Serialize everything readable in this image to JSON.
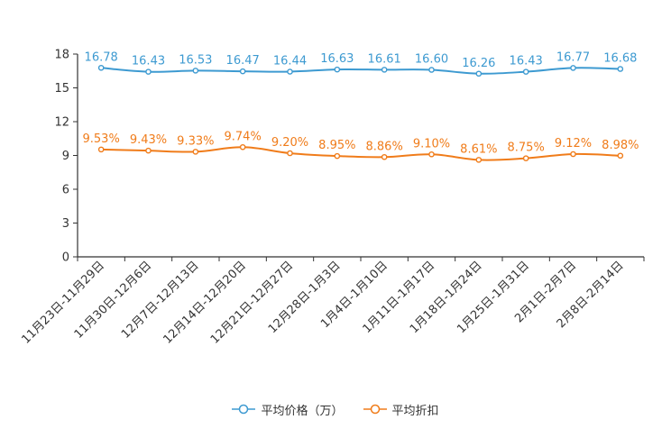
{
  "chart_data": {
    "type": "line",
    "categories": [
      "11月23日-11月29日",
      "11月30日-12月6日",
      "12月7日-12月13日",
      "12月14日-12月20日",
      "12月21日-12月27日",
      "12月28日-1月3日",
      "1月4日-1月10日",
      "1月11日-1月17日",
      "1月18日-1月24日",
      "1月25日-1月31日",
      "2月1日-2月7日",
      "2月8日-2月14日"
    ],
    "series": [
      {
        "name": "平均价格（万）",
        "color": "#3d9ad1",
        "values": [
          16.78,
          16.43,
          16.53,
          16.47,
          16.44,
          16.63,
          16.61,
          16.6,
          16.26,
          16.43,
          16.77,
          16.68
        ],
        "labels": [
          "16.78",
          "16.43",
          "16.53",
          "16.47",
          "16.44",
          "16.63",
          "16.61",
          "16.60",
          "16.26",
          "16.43",
          "16.77",
          "16.68"
        ]
      },
      {
        "name": "平均折扣",
        "color": "#f07c1a",
        "values": [
          9.53,
          9.43,
          9.33,
          9.74,
          9.2,
          8.95,
          8.86,
          9.1,
          8.61,
          8.75,
          9.12,
          8.98
        ],
        "labels": [
          "9.53%",
          "9.43%",
          "9.33%",
          "9.74%",
          "9.20%",
          "8.95%",
          "8.86%",
          "9.10%",
          "8.61%",
          "8.75%",
          "9.12%",
          "8.98%"
        ]
      }
    ],
    "yticks": [
      0,
      3,
      6,
      9,
      12,
      15,
      18
    ],
    "ylim": [
      0,
      18
    ],
    "legend_position": "bottom"
  }
}
